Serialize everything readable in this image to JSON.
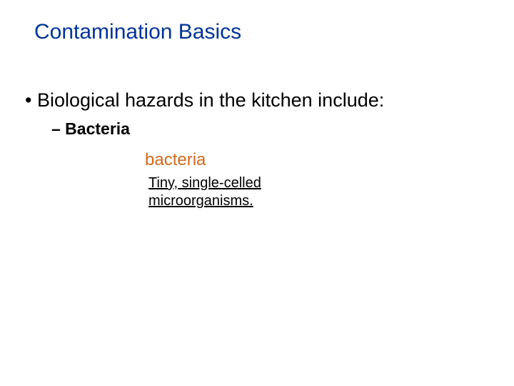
{
  "slide": {
    "title": "Contamination Basics",
    "bullet_main": "• Biological hazards in the kitchen include:",
    "bullet_sub": "– Bacteria",
    "term": "bacteria",
    "definition_line1": "Tiny, single-celled",
    "definition_line2": "microorganisms."
  },
  "styling": {
    "background_color": "#ffffff",
    "title_color": "#003399",
    "title_fontsize": 30,
    "bullet_main_color": "#000000",
    "bullet_main_fontsize": 27,
    "bullet_sub_color": "#000000",
    "bullet_sub_fontsize": 23,
    "bullet_sub_weight": "bold",
    "term_color": "#d2691e",
    "term_fontsize": 24,
    "definition_color": "#000000",
    "definition_fontsize": 20,
    "definition_decoration": "underline"
  }
}
